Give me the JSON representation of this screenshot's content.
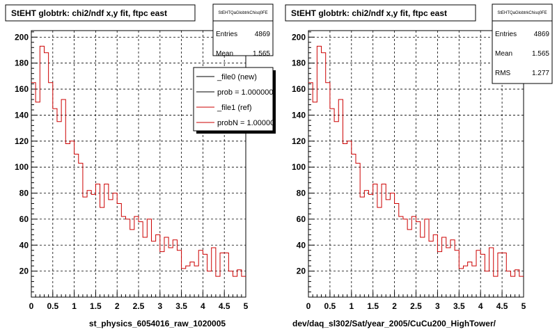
{
  "chart_data": [
    {
      "type": "histogram",
      "title": "StEHT globtrk: chi2/ndf x,y fit, ftpc east",
      "xlabel": "st_physics_6054016_raw_1020005",
      "ylabel": "",
      "xlim": [
        0,
        5
      ],
      "ylim": [
        0,
        205
      ],
      "x_ticks": [
        "0",
        "0.5",
        "1",
        "1.5",
        "2",
        "2.5",
        "3",
        "3.5",
        "4",
        "4.5",
        "5"
      ],
      "y_ticks": [
        "20",
        "40",
        "60",
        "80",
        "100",
        "120",
        "140",
        "160",
        "180",
        "200"
      ],
      "grid": true,
      "bin_width": 0.1,
      "line_color": "#cc0000",
      "series": [
        {
          "values": [
            165,
            150,
            193,
            188,
            165,
            145,
            135,
            152,
            118,
            120,
            110,
            103,
            77,
            82,
            79,
            87,
            69,
            87,
            75,
            80,
            72,
            62,
            60,
            52,
            62,
            58,
            46,
            60,
            43,
            48,
            35,
            46,
            38,
            44,
            36,
            22,
            24,
            27,
            24,
            36,
            33,
            20,
            38,
            16,
            34,
            34,
            20,
            16,
            21,
            16
          ]
        }
      ],
      "stats": {
        "name": "StEHTQaGlobtrkChisq0FE",
        "entries_label": "Entries",
        "entries": "4869",
        "mean_label": "Mean",
        "mean": "1.565"
      },
      "legend": {
        "position": "top-right",
        "entries": [
          {
            "label": "_file0 (new)",
            "color": "#000000"
          },
          {
            "label": "prob = 1.000000",
            "color": "#000000"
          },
          {
            "label": "_file1 (ref)",
            "color": "#cc0000"
          },
          {
            "label": "probN = 1.000000",
            "color": "#cc0000"
          }
        ]
      }
    },
    {
      "type": "histogram",
      "title": "StEHT globtrk: chi2/ndf x,y fit, ftpc east",
      "xlabel": "dev/daq_sl302/Sat/year_2005/CuCu200_HighTower/",
      "ylabel": "",
      "xlim": [
        0,
        5
      ],
      "ylim": [
        0,
        205
      ],
      "x_ticks": [
        "0",
        "0.5",
        "1",
        "1.5",
        "2",
        "2.5",
        "3",
        "3.5",
        "4",
        "4.5",
        "5"
      ],
      "y_ticks": [
        "20",
        "40",
        "60",
        "80",
        "100",
        "120",
        "140",
        "160",
        "180",
        "200"
      ],
      "grid": true,
      "bin_width": 0.1,
      "line_color": "#cc0000",
      "series": [
        {
          "values": [
            165,
            150,
            193,
            188,
            165,
            145,
            135,
            152,
            118,
            120,
            110,
            103,
            77,
            82,
            79,
            87,
            69,
            87,
            75,
            80,
            72,
            62,
            60,
            52,
            62,
            58,
            46,
            60,
            43,
            48,
            35,
            46,
            38,
            44,
            36,
            22,
            24,
            27,
            24,
            36,
            33,
            20,
            38,
            16,
            34,
            34,
            20,
            16,
            21,
            16
          ]
        }
      ],
      "stats": {
        "name": "StEHTQaGlobtrkChisq0FE",
        "entries_label": "Entries",
        "entries": "4869",
        "mean_label": "Mean",
        "mean": "1.565",
        "rms_label": "RMS",
        "rms": "1.277"
      }
    }
  ]
}
